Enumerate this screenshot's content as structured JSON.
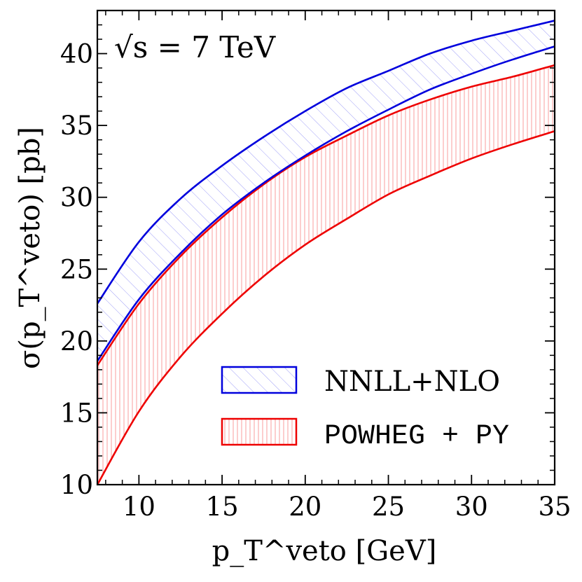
{
  "chart_data": {
    "type": "area",
    "annotation": "√s = 7 TeV",
    "xlabel": "p_T^veto [GeV]",
    "ylabel": "σ(p_T^veto) [pb]",
    "xlim": [
      7.5,
      35
    ],
    "ylim": [
      10,
      43
    ],
    "xticks": [
      10,
      15,
      20,
      25,
      30,
      35
    ],
    "yticks": [
      10,
      15,
      20,
      25,
      30,
      35,
      40
    ],
    "legend_position": "lower-right",
    "series": [
      {
        "name": "NNLL+NLO",
        "color": "#0000dd",
        "hatch": "diagonal",
        "x": [
          7.5,
          10,
          12.5,
          15,
          17.5,
          20,
          22.5,
          25,
          27.5,
          30,
          32.5,
          35
        ],
        "upper": [
          22.6,
          26.9,
          29.9,
          32.2,
          34.2,
          36.0,
          37.6,
          38.8,
          40.0,
          40.9,
          41.6,
          42.3
        ],
        "lower": [
          18.6,
          22.9,
          26.1,
          28.8,
          31.0,
          32.9,
          34.6,
          36.1,
          37.5,
          38.6,
          39.6,
          40.5
        ]
      },
      {
        "name": "POWHEG + PY",
        "color": "#ee0000",
        "hatch": "vertical",
        "x": [
          7.5,
          10,
          12.5,
          15,
          17.5,
          20,
          22.5,
          25,
          27.5,
          30,
          32.5,
          35
        ],
        "upper": [
          18.3,
          22.6,
          25.9,
          28.6,
          30.9,
          32.8,
          34.3,
          35.7,
          36.8,
          37.7,
          38.4,
          39.2
        ],
        "lower": [
          10.0,
          15.1,
          18.9,
          21.9,
          24.5,
          26.7,
          28.5,
          30.2,
          31.5,
          32.7,
          33.7,
          34.6
        ]
      }
    ]
  }
}
